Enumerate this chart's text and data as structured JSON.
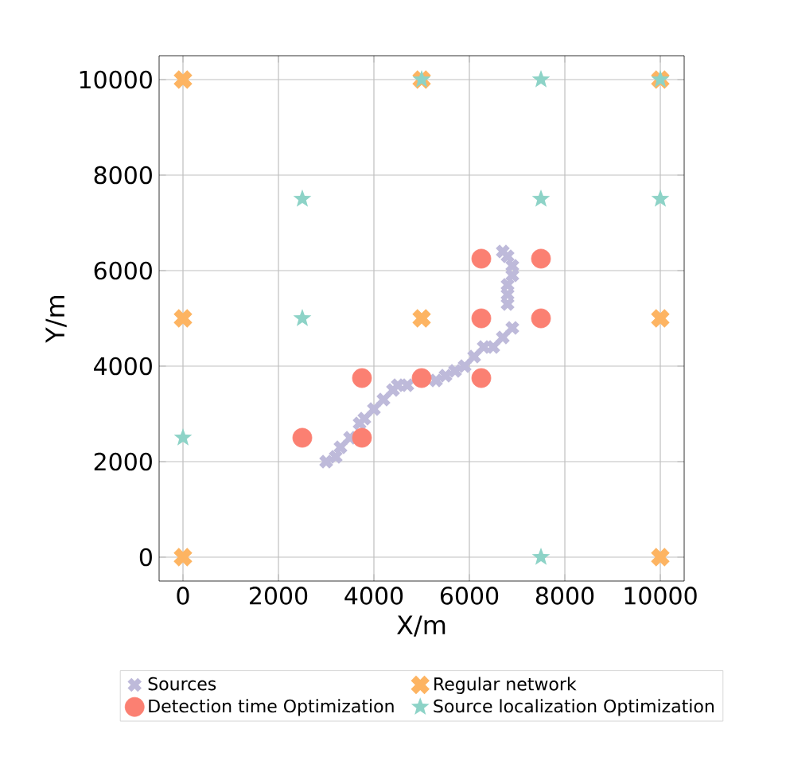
{
  "chart_data": {
    "type": "scatter",
    "xlabel": "X/m",
    "ylabel": "Y/m",
    "xlim": [
      -500,
      10500
    ],
    "ylim": [
      -500,
      10500
    ],
    "xticks": [
      0,
      2000,
      4000,
      6000,
      8000,
      10000
    ],
    "yticks": [
      0,
      2000,
      4000,
      6000,
      8000,
      10000
    ],
    "grid": true,
    "legend": "bottom",
    "series": [
      {
        "name": "Sources",
        "color": "#bebada",
        "marker": "cross",
        "x": [
          3000,
          3200,
          3300,
          3500,
          3700,
          3800,
          4000,
          4200,
          4400,
          4500,
          4700,
          4900,
          5100,
          5300,
          5500,
          5700,
          5900,
          6100,
          6300,
          6500,
          6700,
          6900,
          6800,
          6800,
          6800,
          6900,
          6900,
          6800,
          6700
        ],
        "values": [
          2000,
          2100,
          2300,
          2500,
          2800,
          2900,
          3100,
          3300,
          3500,
          3600,
          3600,
          null,
          null,
          3700,
          3800,
          3900,
          4000,
          4200,
          4400,
          4400,
          4600,
          4800,
          5300,
          5500,
          5700,
          5900,
          6100,
          6300,
          6400
        ]
      },
      {
        "name": "Regular network",
        "color": "#fdb462",
        "marker": "cross",
        "x": [
          0,
          10000,
          0,
          5000,
          10000,
          0,
          5000,
          10000
        ],
        "values": [
          0,
          0,
          5000,
          5000,
          5000,
          10000,
          10000,
          10000
        ]
      },
      {
        "name": "Detection time Optimization",
        "color": "#fb8072",
        "marker": "circle",
        "x": [
          2500,
          3750,
          3750,
          5000,
          6250,
          6250,
          7500,
          6250,
          7500
        ],
        "values": [
          2500,
          2500,
          3750,
          3750,
          3750,
          5000,
          5000,
          6250,
          6250
        ]
      },
      {
        "name": "Source localization Optimization",
        "color": "#8dd3c7",
        "marker": "star",
        "x": [
          5000,
          7500,
          10000,
          2500,
          7500,
          10000,
          2500,
          0,
          7500
        ],
        "values": [
          10000,
          10000,
          10000,
          7500,
          7500,
          7500,
          5000,
          2500,
          0
        ]
      }
    ]
  }
}
